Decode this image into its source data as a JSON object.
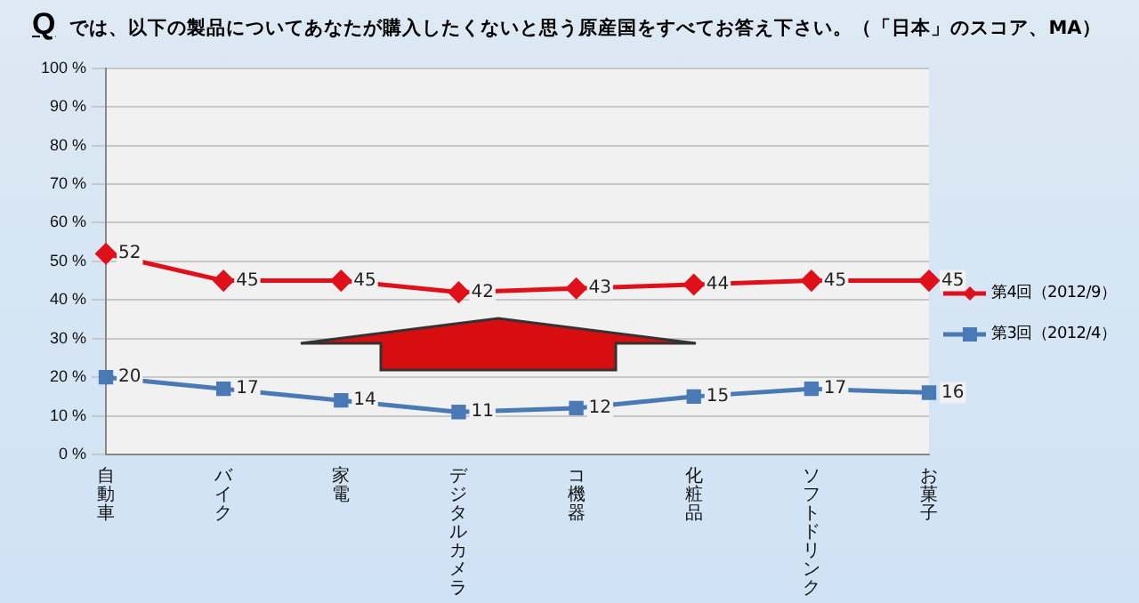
{
  "chart_data": {
    "type": "line",
    "title": "では、以下の製品についてあなたが購入したくないと思う原産国をすべてお答え下さい。（「日本」のスコア、MA）",
    "annotations": [
      "Q"
    ],
    "categories": [
      "自動車",
      "バイク",
      "家電",
      "デジタルカメラ",
      "コ機器",
      "化粧品",
      "ソフトドリンク",
      "お菓子"
    ],
    "series": [
      {
        "name": "第4回（2012/9）",
        "color": "#e0101a",
        "marker": "diamond",
        "values": [
          52,
          45,
          45,
          42,
          43,
          44,
          45,
          45
        ]
      },
      {
        "name": "第3回（2012/4）",
        "color": "#4a7ab5",
        "marker": "square",
        "values": [
          20,
          17,
          14,
          11,
          12,
          15,
          17,
          16
        ]
      }
    ],
    "ylim": [
      0,
      100
    ],
    "yticks": [
      {
        "value": 0,
        "label": "0 %"
      },
      {
        "value": 10,
        "label": "10 %"
      },
      {
        "value": 20,
        "label": "20 %"
      },
      {
        "value": 30,
        "label": "30 %"
      },
      {
        "value": 40,
        "label": "40 %"
      },
      {
        "value": 50,
        "label": "50 %"
      },
      {
        "value": 60,
        "label": "60 %"
      },
      {
        "value": 70,
        "label": "70 %"
      },
      {
        "value": 80,
        "label": "80 %"
      },
      {
        "value": 90,
        "label": "90 %"
      },
      {
        "value": 100,
        "label": "100 %"
      }
    ],
    "grid": "y",
    "legend": "right",
    "data_labels": true,
    "line_style": "solid"
  }
}
